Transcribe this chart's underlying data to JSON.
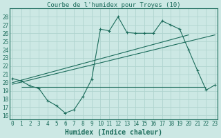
{
  "title": "Courbe de l'humidex pour Troyes (10)",
  "xlabel": "Humidex (Indice chaleur)",
  "bg_color": "#cce8e4",
  "grid_color": "#b0d4cf",
  "line_color": "#1a6b5a",
  "x_values": [
    0,
    1,
    2,
    3,
    4,
    5,
    6,
    7,
    8,
    9,
    10,
    11,
    12,
    13,
    14,
    15,
    16,
    17,
    18,
    19,
    20,
    21,
    22,
    23
  ],
  "main_y": [
    20.5,
    20.2,
    19.6,
    19.3,
    17.8,
    17.2,
    16.3,
    16.7,
    18.3,
    20.4,
    26.5,
    26.3,
    28.0,
    26.1,
    26.0,
    26.0,
    26.0,
    27.5,
    27.0,
    26.5,
    24.0,
    21.5,
    19.1,
    19.7
  ],
  "trend1_x": [
    0,
    20
  ],
  "trend1_y": [
    20.0,
    25.8
  ],
  "trend2_x": [
    0,
    23
  ],
  "trend2_y": [
    19.8,
    25.8
  ],
  "hline_y": 19.5,
  "hline_x_start": 1,
  "hline_x_end": 22,
  "ylim": [
    15.5,
    29
  ],
  "xlim": [
    -0.3,
    23.3
  ],
  "yticks": [
    16,
    17,
    18,
    19,
    20,
    21,
    22,
    23,
    24,
    25,
    26,
    27,
    28
  ],
  "xticks": [
    0,
    1,
    2,
    3,
    4,
    5,
    6,
    7,
    8,
    9,
    10,
    11,
    12,
    13,
    14,
    15,
    16,
    17,
    18,
    19,
    20,
    21,
    22,
    23
  ],
  "title_fontsize": 6.5,
  "label_fontsize": 7,
  "tick_fontsize": 5.5
}
